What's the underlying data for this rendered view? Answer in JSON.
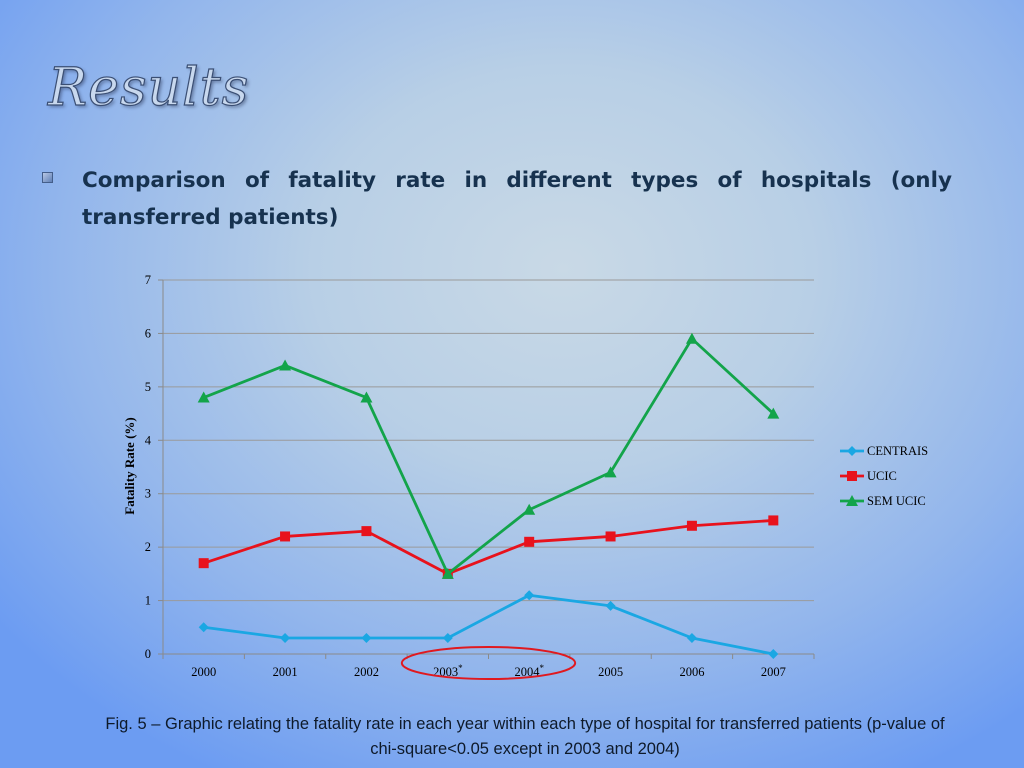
{
  "slide": {
    "title": "Results",
    "bullet": "Comparison of fatality rate in different types of hospitals (only transferred patients)",
    "caption": "Fig. 5 – Graphic relating the fatality rate in each year within each type of hospital for transferred patients (p-value of chi-square<0.05 except  in 2003 and 2004)"
  },
  "colors": {
    "centrais": "#1aa7e3",
    "ucic": "#e8121c",
    "sem_ucic": "#13a44a",
    "highlight_circle": "#e0191f"
  },
  "chart_data": {
    "type": "line",
    "ylabel": "Fatality Rate (%)",
    "xlabel": "",
    "categories": [
      "2000",
      "2001",
      "2002",
      "2003*",
      "2004*",
      "2005",
      "2006",
      "2007"
    ],
    "ylim": [
      0,
      7
    ],
    "yticks": [
      "0",
      "1",
      "2",
      "3",
      "4",
      "5",
      "6",
      "7"
    ],
    "grid": true,
    "legend_position": "right",
    "highlighted_categories": [
      "2003*",
      "2004*"
    ],
    "series": [
      {
        "name": "CENTRAIS",
        "marker": "diamond",
        "values": [
          0.5,
          0.3,
          0.3,
          0.3,
          1.1,
          0.9,
          0.3,
          0.0
        ]
      },
      {
        "name": "UCIC",
        "marker": "square",
        "values": [
          1.7,
          2.2,
          2.3,
          1.5,
          2.1,
          2.2,
          2.4,
          2.5
        ]
      },
      {
        "name": "SEM UCIC",
        "marker": "triangle",
        "values": [
          4.8,
          5.4,
          4.8,
          1.5,
          2.7,
          3.4,
          5.9,
          4.5
        ]
      }
    ]
  }
}
